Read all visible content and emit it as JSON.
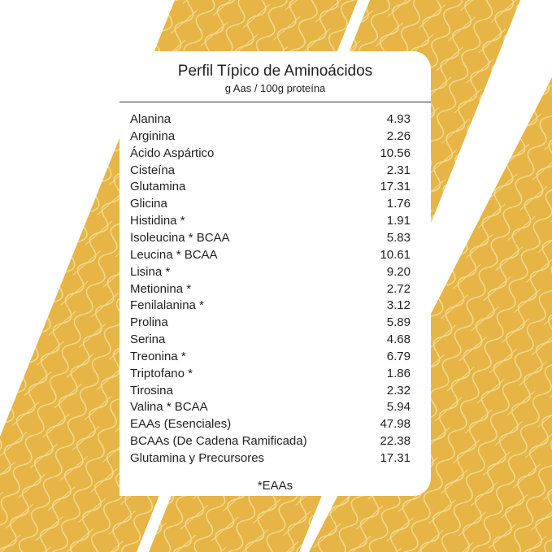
{
  "header": {
    "title": "Perfil Típico de Aminoácidos",
    "subtitle": "g Aas / 100g proteína"
  },
  "table": {
    "rows": [
      [
        "Alanina",
        "4.93"
      ],
      [
        "Arginina",
        "2.26"
      ],
      [
        "Ácido Aspártico",
        "10.56"
      ],
      [
        "Cisteína",
        "2.31"
      ],
      [
        "Glutamina",
        "17.31"
      ],
      [
        "Glicina",
        "1.76"
      ],
      [
        "Histidina *",
        "1.91"
      ],
      [
        "Isoleucina * BCAA",
        "5.83"
      ],
      [
        "Leucina * BCAA",
        "10.61"
      ],
      [
        "Lisina *",
        "9.20"
      ],
      [
        "Metionina *",
        "2.72"
      ],
      [
        "Fenilalanina *",
        "3.12"
      ],
      [
        "Prolina",
        "5.89"
      ],
      [
        "Serina",
        "4.68"
      ],
      [
        "Treonina *",
        "6.79"
      ],
      [
        "Triptofano *",
        "1.86"
      ],
      [
        "Tirosina",
        "2.32"
      ],
      [
        "Valina * BCAA",
        "5.94"
      ],
      [
        "EAAs (Esenciales)",
        "47.98"
      ],
      [
        "BCAAs (De Cadena Ramificada)",
        "22.38"
      ],
      [
        "Glutamina y Precursores",
        "17.31"
      ]
    ]
  },
  "footnote": "*EAAs"
}
